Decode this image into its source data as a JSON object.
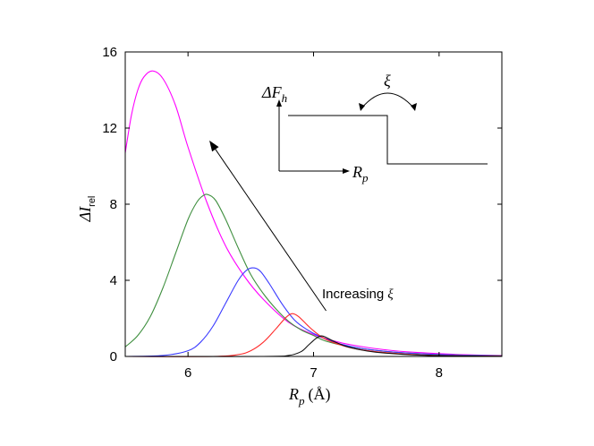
{
  "chart_data": {
    "type": "line",
    "xlim": [
      5.5,
      8.5
    ],
    "ylim": [
      0,
      16
    ],
    "xticks": [
      6,
      7,
      8
    ],
    "yticks": [
      0,
      4,
      8,
      12,
      16
    ],
    "xtick_labels": [
      "6",
      "7",
      "8"
    ],
    "ytick_labels": [
      "0",
      "4",
      "8",
      "12",
      "16"
    ],
    "xlabel": {
      "symbol": "R",
      "subscript": "p",
      "unit": "(Å)"
    },
    "ylabel": {
      "symbol": "ΔI",
      "subscript": "rel"
    },
    "series": [
      {
        "color": "#ff00ff",
        "x": [
          5.5,
          5.55,
          5.6,
          5.65,
          5.72,
          5.8,
          5.9,
          6.0,
          6.15,
          6.3,
          6.45,
          6.6,
          6.8,
          7.0,
          7.2,
          7.4,
          7.6,
          7.8,
          8.0,
          8.2,
          8.5
        ],
        "y": [
          10.7,
          12.7,
          14.0,
          14.7,
          15.0,
          14.6,
          13.2,
          11.0,
          8.1,
          5.8,
          4.2,
          3.0,
          1.8,
          1.15,
          0.75,
          0.5,
          0.33,
          0.22,
          0.15,
          0.09,
          0.05
        ]
      },
      {
        "color": "#3f8f3f",
        "x": [
          5.5,
          5.6,
          5.7,
          5.8,
          5.9,
          6.0,
          6.07,
          6.12,
          6.16,
          6.22,
          6.3,
          6.4,
          6.5,
          6.6,
          6.7,
          6.8,
          6.9,
          7.0,
          7.1,
          7.3,
          7.6,
          7.9,
          8.2,
          8.5
        ],
        "y": [
          0.5,
          1.1,
          2.1,
          3.6,
          5.4,
          7.2,
          8.1,
          8.45,
          8.5,
          8.2,
          7.2,
          5.7,
          4.3,
          3.3,
          2.5,
          1.85,
          1.4,
          1.1,
          0.8,
          0.5,
          0.25,
          0.13,
          0.07,
          0.03
        ]
      },
      {
        "color": "#3a3aff",
        "x": [
          5.5,
          5.8,
          6.0,
          6.1,
          6.2,
          6.3,
          6.4,
          6.47,
          6.53,
          6.58,
          6.65,
          6.75,
          6.85,
          6.95,
          7.05,
          7.2,
          7.4,
          7.7,
          8.0,
          8.5
        ],
        "y": [
          0.0,
          0.05,
          0.3,
          0.75,
          1.6,
          2.8,
          4.0,
          4.55,
          4.65,
          4.45,
          3.8,
          2.75,
          1.9,
          1.4,
          1.05,
          0.68,
          0.4,
          0.2,
          0.1,
          0.02
        ]
      },
      {
        "color": "#ff2a2a",
        "x": [
          5.5,
          6.2,
          6.4,
          6.5,
          6.6,
          6.7,
          6.78,
          6.83,
          6.88,
          6.95,
          7.0,
          7.07,
          7.15,
          7.3,
          7.5,
          7.8,
          8.1,
          8.5
        ],
        "y": [
          0.0,
          0.0,
          0.1,
          0.3,
          0.75,
          1.45,
          2.05,
          2.25,
          2.1,
          1.65,
          1.35,
          1.0,
          0.75,
          0.45,
          0.25,
          0.1,
          0.04,
          0.01
        ]
      },
      {
        "color": "#111111",
        "x": [
          5.5,
          6.6,
          6.8,
          6.9,
          6.96,
          7.02,
          7.06,
          7.1,
          7.16,
          7.25,
          7.35,
          7.5,
          7.8,
          8.1,
          8.5
        ],
        "y": [
          0.0,
          0.0,
          0.05,
          0.25,
          0.6,
          0.95,
          1.08,
          1.0,
          0.8,
          0.55,
          0.38,
          0.22,
          0.08,
          0.03,
          0.01
        ]
      }
    ],
    "annotation": {
      "text": "Increasing",
      "symbol": "ξ",
      "arrow_from": [
        7.1,
        2.4
      ],
      "arrow_to": [
        6.17,
        11.35
      ]
    },
    "inset": {
      "y_symbol": "ΔF",
      "y_subscript": "h",
      "x_symbol": "R",
      "x_subscript": "p",
      "parameter_symbol": "ξ"
    }
  }
}
